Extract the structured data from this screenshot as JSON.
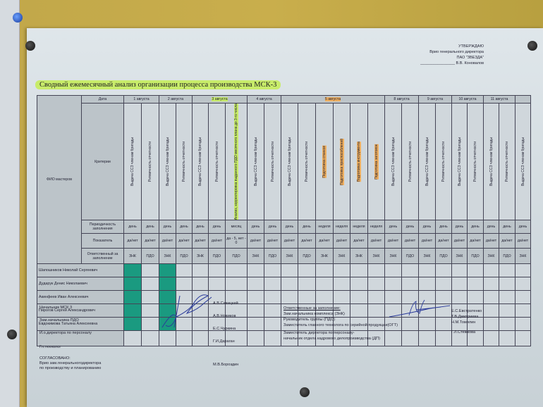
{
  "approval": {
    "line1": "УТВЕРЖДАЮ",
    "line2": "Врио генерального директора",
    "line3": "ПАО \"ЗВЕЗДА\"",
    "line4": "________________ В.В. Коновалов"
  },
  "title": "Сводный ежемесячный анализ организации процесса производства  МСК-3",
  "table": {
    "fio_header": "ФИО мастеров",
    "row_labels": {
      "date": "Дата",
      "criteria": "Критерии",
      "periodicity": "Периодичность заполнения",
      "indicator": "Показатель",
      "responsible": "Ответственный за заполнение"
    },
    "dates": [
      {
        "label": "1 августа",
        "span": 2,
        "highlight": ""
      },
      {
        "label": "2 августа",
        "span": 2,
        "highlight": ""
      },
      {
        "label": "3 августа",
        "span": 3,
        "highlight": "green"
      },
      {
        "label": "4 августа",
        "span": 2,
        "highlight": ""
      },
      {
        "label": "5 августа",
        "span": 6,
        "highlight": "orange"
      },
      {
        "label": "8 августа",
        "span": 2,
        "highlight": ""
      },
      {
        "label": "9 августа",
        "span": 2,
        "highlight": ""
      },
      {
        "label": "10 августа",
        "span": 2,
        "highlight": ""
      },
      {
        "label": "11 августа",
        "span": 2,
        "highlight": ""
      },
      {
        "label": "",
        "span": 1,
        "highlight": ""
      }
    ],
    "columns": [
      {
        "criterion": "Выдача СCЗ членам бригады",
        "periodicity": "день",
        "indicator": "да/нет",
        "responsible": "ЗНК",
        "hl": ""
      },
      {
        "criterion": "Ритмичность отчетности",
        "periodicity": "день",
        "indicator": "да/нет",
        "responsible": "ПДО",
        "hl": ""
      },
      {
        "criterion": "Выдача СCЗ членам бригады",
        "periodicity": "день",
        "indicator": "да/нет",
        "responsible": "ЗНК",
        "hl": ""
      },
      {
        "criterion": "Ритмичность отчетности",
        "periodicity": "день",
        "indicator": "да/нет",
        "responsible": "ПДО",
        "hl": ""
      },
      {
        "criterion": "Выдача СCЗ членам бригады",
        "periodicity": "день",
        "indicator": "да/нет",
        "responsible": "ЗНК",
        "hl": ""
      },
      {
        "criterion": "Ритмичность отчетности",
        "periodicity": "день",
        "indicator": "да/нет",
        "responsible": "ПДО",
        "hl": ""
      },
      {
        "criterion": "Анализ, корректировка выданного ПДО месячного плана до 3-го числа",
        "periodicity": "месяц",
        "indicator": "да - 5, нет - 0",
        "responsible": "ПДО",
        "hl": "green"
      },
      {
        "criterion": "Выдача СCЗ членам бригады",
        "periodicity": "день",
        "indicator": "да/нет",
        "responsible": "ЗНК",
        "hl": ""
      },
      {
        "criterion": "Ритмичность отчетности",
        "periodicity": "день",
        "indicator": "да/нет",
        "responsible": "ПДО",
        "hl": ""
      },
      {
        "criterion": "Выдача СCЗ членам бригады",
        "periodicity": "день",
        "indicator": "да/нет",
        "responsible": "ЗНК",
        "hl": ""
      },
      {
        "criterion": "Ритмичность отчетности",
        "periodicity": "день",
        "indicator": "да/нет",
        "responsible": "ПДО",
        "hl": ""
      },
      {
        "criterion": "Подготовка станков",
        "periodicity": "неделя",
        "indicator": "да/нет",
        "responsible": "ЗНК",
        "hl": "orange"
      },
      {
        "criterion": "Подготовка приспособлений",
        "periodicity": "неделя",
        "indicator": "да/нет",
        "responsible": "ЗНК",
        "hl": "orange"
      },
      {
        "criterion": "Подготовка инструмента",
        "periodicity": "неделя",
        "indicator": "да/нет",
        "responsible": "ЗНК",
        "hl": "orange"
      },
      {
        "criterion": "Подготовка заготовок",
        "periodicity": "неделя",
        "indicator": "да/нет",
        "responsible": "ЗНК",
        "hl": "orange"
      },
      {
        "criterion": "Выдача СCЗ членам бригады",
        "periodicity": "день",
        "indicator": "да/нет",
        "responsible": "ЗНК",
        "hl": ""
      },
      {
        "criterion": "Ритмичность отчетности",
        "periodicity": "день",
        "indicator": "да/нет",
        "responsible": "ПДО",
        "hl": ""
      },
      {
        "criterion": "Выдача СCЗ членам бригады",
        "periodicity": "день",
        "indicator": "да/нет",
        "responsible": "ЗНК",
        "hl": ""
      },
      {
        "criterion": "Ритмичность отчетности",
        "periodicity": "день",
        "indicator": "да/нет",
        "responsible": "ПДО",
        "hl": ""
      },
      {
        "criterion": "Выдача СCЗ членам бригады",
        "periodicity": "день",
        "indicator": "да/нет",
        "responsible": "ЗНК",
        "hl": ""
      },
      {
        "criterion": "Ритмичность отчетности",
        "periodicity": "день",
        "indicator": "да/нет",
        "responsible": "ПДО",
        "hl": ""
      },
      {
        "criterion": "Выдача СCЗ членам бригады",
        "periodicity": "день",
        "indicator": "да/нет",
        "responsible": "ЗНК",
        "hl": ""
      },
      {
        "criterion": "Ритмичность отчетности",
        "periodicity": "день",
        "indicator": "да/нет",
        "responsible": "ПДО",
        "hl": ""
      },
      {
        "criterion": "Выдача СCЗ членам бригады",
        "periodicity": "день",
        "indicator": "да/нет",
        "responsible": "ЗНК",
        "hl": ""
      }
    ],
    "masters": [
      "Шапошников Николай Сергеевич",
      "Дударук Денис Николаевич",
      "Акинфеев Иван Алексеевич",
      "Пирогов Сергей Александрович",
      "Евдокимова Татьяна Алексеевна",
      ""
    ],
    "filled_columns": [
      0,
      2
    ],
    "fill_color": "#1a9a80"
  },
  "signatures_left": {
    "roles": [
      "Начальник МСК 3",
      "Зам.начальника ПДО",
      "И.о.директора по персоналу",
      "Гл.технолог"
    ],
    "agreed": "СОГЛАСОВАНО:",
    "agreed_role1": "Врио зам.генеральногодиректора",
    "agreed_role2": "по производству и планированию",
    "names": [
      "А.В.Савицкий",
      "А.В.Новиков",
      "Е.С.Чуркина",
      "Г.И.Дараган",
      "М.В.Бороздин"
    ]
  },
  "responsible": {
    "heading": "Ответственные за заполнение:",
    "lines": [
      "Зам.начальника комплекса (ЗНК)",
      "Руководитель группы (ПДО)",
      "Заместитель главного  технолога по серийной продукции(ОГТ)",
      "Заместитель директора по персоналу-",
      "начальник отдела кадрового делопроизводства (ДП)"
    ],
    "names": [
      "Е.С.Евстратенко",
      "Т.В.Дмитриева",
      "Н.М.Томилин",
      "Г.Л.Стежкова"
    ]
  }
}
